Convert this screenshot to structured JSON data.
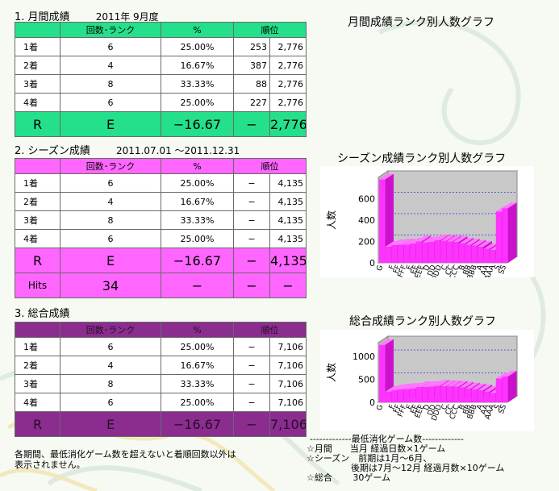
{
  "monthly": {
    "heading": "1. 月間成績",
    "period": "2011年 9月度",
    "columns": [
      "",
      "回数･ランク",
      "%",
      "順位"
    ],
    "rows": [
      {
        "label": "1着",
        "count": "6",
        "pct": "25.00%",
        "rank": "253",
        "total": "2,776"
      },
      {
        "label": "2着",
        "count": "4",
        "pct": "16.67%",
        "rank": "387",
        "total": "2,776"
      },
      {
        "label": "3着",
        "count": "8",
        "pct": "33.33%",
        "rank": "88",
        "total": "2,776"
      },
      {
        "label": "4着",
        "count": "6",
        "pct": "25.00%",
        "rank": "227",
        "total": "2,776"
      }
    ],
    "r_row": {
      "label": "R",
      "value": "E",
      "pct": "−16.67",
      "rank": "−",
      "total": "2,776"
    },
    "color": "#24e08a"
  },
  "season": {
    "heading": "2. シーズン成績",
    "period": "2011.07.01 〜2011.12.31",
    "columns": [
      "",
      "回数･ランク",
      "%",
      "順位"
    ],
    "rows": [
      {
        "label": "1着",
        "count": "6",
        "pct": "25.00%",
        "rank": "−",
        "total": "4,135"
      },
      {
        "label": "2着",
        "count": "4",
        "pct": "16.67%",
        "rank": "−",
        "total": "4,135"
      },
      {
        "label": "3着",
        "count": "8",
        "pct": "33.33%",
        "rank": "−",
        "total": "4,135"
      },
      {
        "label": "4着",
        "count": "6",
        "pct": "25.00%",
        "rank": "−",
        "total": "4,135"
      }
    ],
    "r_row": {
      "label": "R",
      "value": "E",
      "pct": "−16.67",
      "rank": "−",
      "total": "4,135"
    },
    "hits_row": {
      "label": "Hits",
      "value": "34",
      "pct": "−",
      "rank": "−",
      "total": "−"
    },
    "color": "#ff66ff"
  },
  "overall": {
    "heading": "3. 総合成績",
    "columns": [
      "",
      "回数･ランク",
      "%",
      "順位"
    ],
    "rows": [
      {
        "label": "1着",
        "count": "6",
        "pct": "25.00%",
        "rank": "−",
        "total": "7,106"
      },
      {
        "label": "2着",
        "count": "4",
        "pct": "16.67%",
        "rank": "−",
        "total": "7,106"
      },
      {
        "label": "3着",
        "count": "8",
        "pct": "33.33%",
        "rank": "−",
        "total": "7,106"
      },
      {
        "label": "4着",
        "count": "6",
        "pct": "25.00%",
        "rank": "−",
        "total": "7,106"
      }
    ],
    "r_row": {
      "label": "R",
      "value": "E",
      "pct": "−16.67",
      "rank": "−",
      "total": "7,106"
    },
    "color": "#8a2d8f"
  },
  "graphs": {
    "monthly_title": "月間成績ランク別人数グラフ",
    "season_title": "シーズン成績ランク別人数グラフ",
    "overall_title": "総合成績ランク別人数グラフ"
  },
  "chart_data": [
    {
      "type": "bar",
      "title": "シーズン成績ランク別人数グラフ",
      "ylabel": "人数",
      "xlabel": "",
      "ylim": [
        0,
        800
      ],
      "yticks": [
        0,
        200,
        400,
        600
      ],
      "categories": [
        "G",
        "F",
        "FF",
        "FFF",
        "E",
        "EE",
        "EEE",
        "D",
        "DD",
        "DDD",
        "C",
        "CC",
        "CCC",
        "B",
        "BB",
        "BBB",
        "A",
        "AA",
        "AAA",
        "S",
        "SS"
      ],
      "category_labels": [
        "G",
        "",
        "F",
        "FF",
        "FFF",
        "E",
        "EE",
        "EEE",
        "D",
        "DD",
        "DDD",
        "C",
        "CC",
        "CCC",
        "B",
        "BB",
        "BBB",
        "A",
        "AA",
        "AAA",
        "S",
        "SS"
      ],
      "values": [
        780,
        150,
        165,
        170,
        170,
        180,
        200,
        190,
        195,
        210,
        205,
        200,
        195,
        180,
        170,
        160,
        150,
        130,
        120,
        480,
        510
      ],
      "grid": true,
      "bar_color": "#ff33ff"
    },
    {
      "type": "bar",
      "title": "総合成績ランク別人数グラフ",
      "ylabel": "人数",
      "xlabel": "",
      "ylim": [
        0,
        1300
      ],
      "yticks": [
        0,
        500,
        1000
      ],
      "categories": [
        "G",
        "F",
        "FF",
        "FFF",
        "E",
        "EE",
        "EEE",
        "D",
        "DD",
        "DDD",
        "C",
        "CC",
        "CCC",
        "B",
        "BB",
        "BBB",
        "A",
        "AA",
        "AAA",
        "S",
        "SS"
      ],
      "category_labels": [
        "G",
        "",
        "F",
        "FF",
        "FFF",
        "E",
        "EE",
        "EEE",
        "D",
        "DD",
        "DDD",
        "C",
        "CC",
        "CCC",
        "B",
        "BB",
        "BBB",
        "A",
        "AA",
        "AAA",
        "S",
        "SS"
      ],
      "values": [
        1250,
        230,
        260,
        280,
        290,
        300,
        330,
        330,
        340,
        360,
        350,
        345,
        340,
        320,
        300,
        280,
        260,
        230,
        200,
        520,
        560
      ],
      "grid": true,
      "bar_color": "#ff33ff"
    }
  ],
  "notes": {
    "left_line1": "各期間、最低消化ゲーム数を超えないと着順回数以外は",
    "left_line2": "表示されません。",
    "right_header": "-------------最低消化ゲーム数-------------",
    "right_line1": "☆月間　　当月 経過日数×1ゲーム",
    "right_line2": "☆シーズン　前期は1月〜6月、",
    "right_line3": "　　　　　後期は7月〜12月 経過月数×10ゲーム",
    "right_line4": "☆総合　　 30ゲーム"
  }
}
